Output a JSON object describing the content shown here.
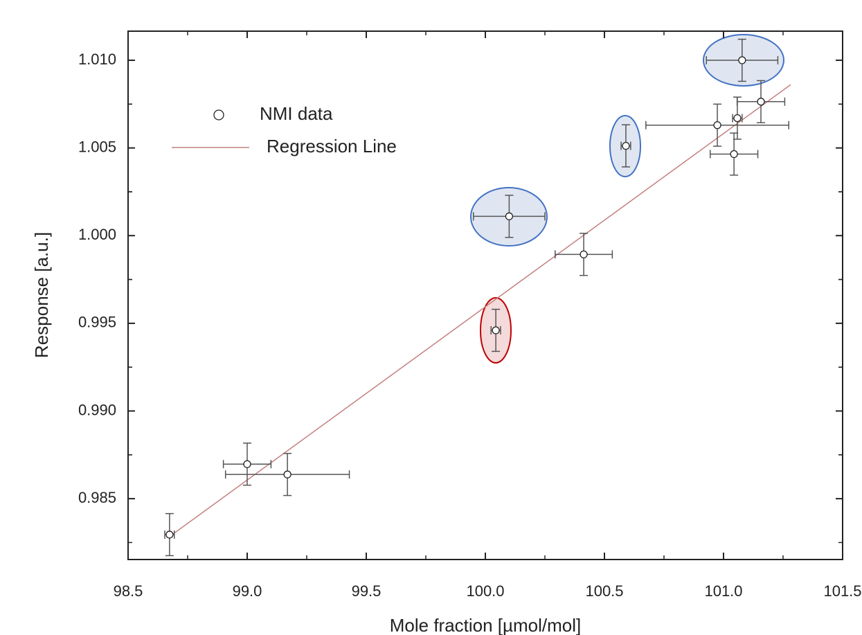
{
  "chart_data": {
    "type": "scatter",
    "x_label": "Mole fraction [µmol/mol]",
    "y_label": "Response [a.u.]",
    "xlim": [
      98.5,
      101.5
    ],
    "ylim": [
      0.98153,
      1.01166
    ],
    "xticks": [
      98.5,
      {
        "value": 99,
        "label": "99.0"
      },
      99.5,
      {
        "value": 100,
        "label": "100.0"
      },
      100.5,
      {
        "value": 101,
        "label": "101.0"
      },
      101.5
    ],
    "yticks": [
      0.985,
      {
        "value": 0.99,
        "label": "0.990"
      },
      0.995,
      {
        "value": 1,
        "label": "1.000"
      },
      1.005,
      {
        "value": 1.01,
        "label": "1.010"
      }
    ],
    "series": [
      {
        "name": "NMI data",
        "color": "#222222",
        "x": [
          98.674,
          99.0,
          99.169,
          100.044,
          100.1,
          100.413,
          100.59,
          100.974,
          101.058,
          101.044,
          101.157,
          101.078
        ],
        "values": [
          0.98295,
          0.98697,
          0.98638,
          0.9946,
          1.0011,
          0.99893,
          1.00512,
          1.0063,
          1.0067,
          1.00465,
          1.00764,
          1.01
        ],
        "xerr": [
          0.02,
          0.1,
          0.26,
          0.02,
          0.15,
          0.12,
          0.02,
          0.3,
          0.02,
          0.1,
          0.1,
          0.15
        ],
        "yerr": [
          0.0012,
          0.0012,
          0.0012,
          0.0012,
          0.0012,
          0.0012,
          0.0012,
          0.0012,
          0.0012,
          0.0012,
          0.0012,
          0.0012
        ]
      },
      {
        "name": "Regression Line",
        "color": "#c48080",
        "type": "line",
        "x": [
          98.674,
          101.282
        ],
        "values": [
          0.98284,
          1.00861
        ]
      }
    ]
  }
}
